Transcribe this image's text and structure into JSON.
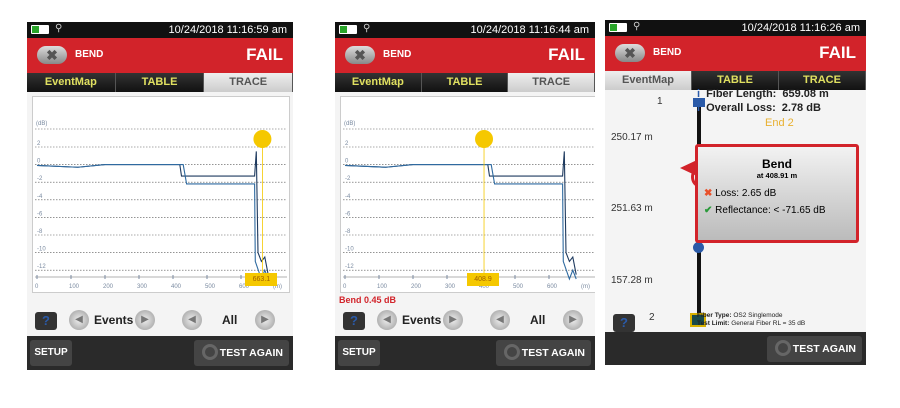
{
  "screens": [
    {
      "status_time": "10/24/2018 11:16:59 am",
      "event": "BEND",
      "result": "FAIL",
      "tabs": [
        "EventMap",
        "TABLE",
        "TRACE"
      ],
      "active_tab": "TRACE",
      "cursor_label": "663.1",
      "cursor_m": 663,
      "events_label": "Events",
      "all_label": "All",
      "help": "?",
      "setup": "SETUP",
      "test_again": "TEST AGAIN"
    },
    {
      "status_time": "10/24/2018 11:16:44 am",
      "event": "BEND",
      "result": "FAIL",
      "tabs": [
        "EventMap",
        "TABLE",
        "TRACE"
      ],
      "active_tab": "TRACE",
      "cursor_label": "408.9",
      "cursor_m": 408.9,
      "bend_label": "Bend 0.45 dB",
      "events_label": "Events",
      "all_label": "All",
      "help": "?",
      "setup": "SETUP",
      "test_again": "TEST AGAIN"
    },
    {
      "status_time": "10/24/2018 11:16:26 am",
      "event": "BEND",
      "result": "FAIL",
      "tabs": [
        "EventMap",
        "TABLE",
        "TRACE"
      ],
      "active_tab": "EventMap",
      "fiber_length_label": "Fiber Length:",
      "fiber_length": "659.08 m",
      "overall_loss_label": "Overall Loss:",
      "overall_loss": "2.78 dB",
      "end_label": "End 2",
      "node_start": "1",
      "node_end": "2",
      "segments": [
        "250.17 m",
        "251.63 m",
        "157.28 m"
      ],
      "popup": {
        "title": "Bend",
        "at": "at 408.91 m",
        "loss": "Loss: 2.65 dB",
        "reflectance": "Reflectance: < -71.65 dB"
      },
      "fiber_type_label": "Fiber Type:",
      "fiber_type": "OS2 Singlemode",
      "test_limit_label": "Test Limit:",
      "test_limit": "General Fiber RL = 35 dB",
      "help": "?",
      "test_again": "TEST AGAIN"
    }
  ],
  "trace": {
    "y_unit": "(dB)",
    "x_unit": "(m)",
    "y_ticks": [
      "2",
      "0",
      "-2",
      "-4",
      "-6",
      "-8",
      "-10",
      "-12"
    ],
    "x_ticks": [
      "0",
      "100",
      "200",
      "300",
      "400",
      "500",
      "600"
    ],
    "series": [
      {
        "points": [
          [
            0,
            -0.1
          ],
          [
            120,
            -0.3
          ],
          [
            200,
            0
          ],
          [
            420,
            0
          ],
          [
            425,
            -1.3
          ],
          [
            640,
            -1.3
          ],
          [
            645,
            1.5
          ],
          [
            650,
            -10
          ],
          [
            660,
            -11
          ],
          [
            670,
            -10.5
          ],
          [
            680,
            -12.5
          ]
        ],
        "color": "#1e3a5f"
      },
      {
        "points": [
          [
            0,
            -0.1
          ],
          [
            120,
            -0.3
          ],
          [
            200,
            0
          ],
          [
            430,
            0
          ],
          [
            440,
            -2.2
          ],
          [
            640,
            -2.2
          ],
          [
            642,
            -11
          ],
          [
            660,
            -13
          ],
          [
            670,
            -12
          ],
          [
            680,
            -13
          ]
        ],
        "color": "#2f6aa0"
      }
    ],
    "colors": {
      "cursor": "#f5c800",
      "grid": "#555"
    }
  }
}
